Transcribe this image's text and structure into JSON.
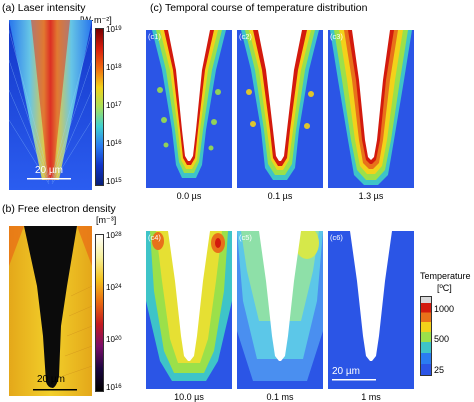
{
  "panels": {
    "a": {
      "title": "(a) Laser intensity",
      "unit": "[W·m⁻²]",
      "colorbar_ticks": [
        {
          "base": "10",
          "exp": "19"
        },
        {
          "base": "10",
          "exp": "18"
        },
        {
          "base": "10",
          "exp": "17"
        },
        {
          "base": "10",
          "exp": "16"
        },
        {
          "base": "10",
          "exp": "15"
        }
      ],
      "scale_bar": "20 µm"
    },
    "b": {
      "title": "(b) Free electron density",
      "unit": "[m⁻³]",
      "colorbar_ticks": [
        {
          "base": "10",
          "exp": "28"
        },
        {
          "base": "10",
          "exp": "24"
        },
        {
          "base": "10",
          "exp": "20"
        },
        {
          "base": "10",
          "exp": "16"
        }
      ],
      "scale_bar": "20 µm"
    },
    "c": {
      "title": "(c) Temporal course of temperature distribution",
      "subpanels": [
        {
          "label": "(c1)",
          "time": "0.0 µs"
        },
        {
          "label": "(c2)",
          "time": "0.1 µs"
        },
        {
          "label": "(c3)",
          "time": "1.3 µs"
        },
        {
          "label": "(c4)",
          "time": "10.0 µs"
        },
        {
          "label": "(c5)",
          "time": "0.1 ms"
        },
        {
          "label": "(c6)",
          "time": "1 ms"
        }
      ],
      "legend_title": "Temperature",
      "legend_unit": "[ºC]",
      "legend_ticks": [
        "1000",
        "500",
        "25"
      ],
      "scale_bar": "20 µm"
    }
  },
  "colors": {
    "temp_bg": "#2b55e6",
    "hole": "#ffffff",
    "jet_blue": "#1a3ad6",
    "yellow": "#f2d21a",
    "red": "#d31a0d"
  }
}
